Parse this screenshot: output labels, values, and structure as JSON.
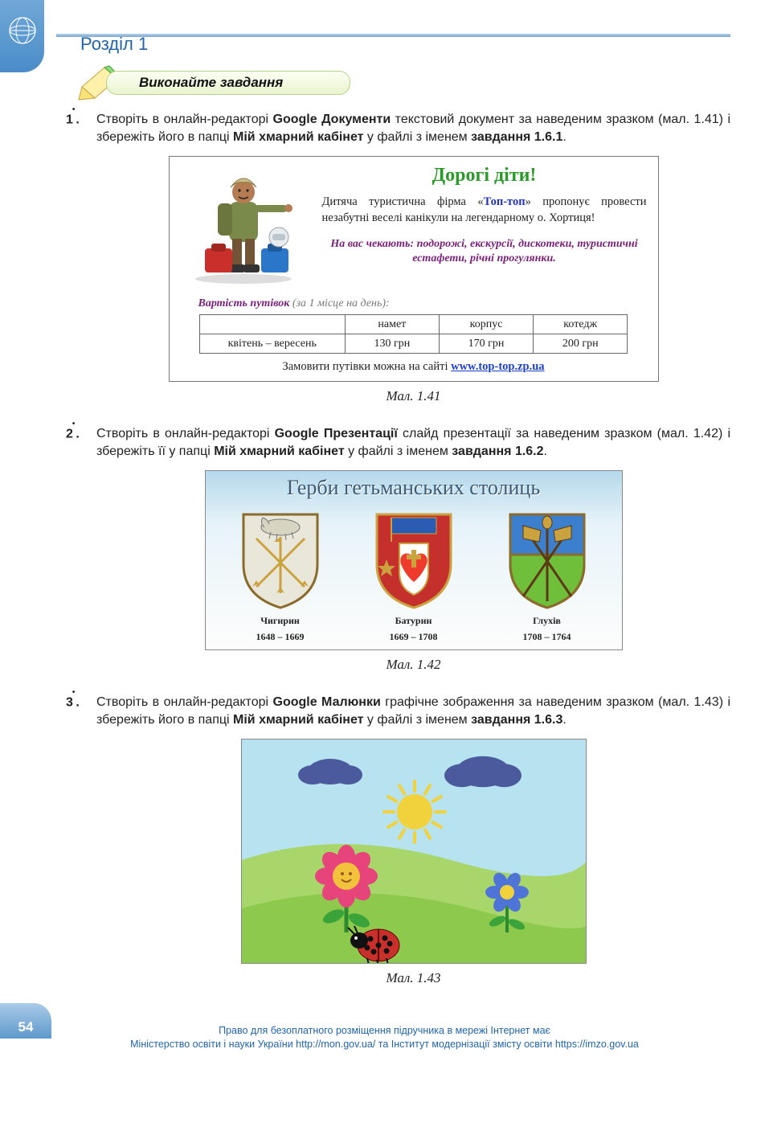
{
  "header": {
    "section": "Розділ 1",
    "banner": "Виконайте завдання"
  },
  "tasks": [
    {
      "num": "1",
      "dot": "•",
      "text_parts": [
        "Створіть в онлайн-редакторі ",
        "Google Документи",
        " текстовий документ за наведеним зразком (мал. 1.41) і збережіть його в папці ",
        "Мій хмарний кабінет",
        " у файлі з іменем ",
        "завдання 1.6.1",
        "."
      ]
    },
    {
      "num": "2",
      "dot": "•",
      "text_parts": [
        "Створіть в онлайн-редакторі ",
        "Google Презентації",
        " слайд презентації за наведеним зразком (мал. 1.42) і збережіть її у папці ",
        "Мій хмарний кабінет",
        " у файлі з іменем ",
        "завдання 1.6.2",
        "."
      ]
    },
    {
      "num": "3",
      "dot": "•",
      "text_parts": [
        "Створіть в онлайн-редакторі ",
        "Google Малюнки",
        " графічне зображення за наведеним зразком (мал. 1.43) і збережіть його в папці ",
        "Мій хмарний кабінет",
        " у файлі з іменем ",
        "завдання 1.6.3",
        "."
      ]
    }
  ],
  "fig141": {
    "caption": "Мал. 1.41",
    "title": "Дорогі  діти!",
    "para_pre": "Дитяча туристична фірма «",
    "para_firm": "Топ-топ",
    "para_post": "» пропонує провести незабутні веселі канікули на легендарному о. Хортиця!",
    "wait": "На вас чекають: подорожі, екскурсії, дискотеки, туристичні естафети, річні прогулянки.",
    "price_title": "Вартість путівок",
    "price_sub": " (за 1 місце  на день):",
    "table_headers": [
      "",
      "намет",
      "корпус",
      "котедж"
    ],
    "table_row_label": "квітень – вересень",
    "table_row_values": [
      "130 грн",
      "170 грн",
      "200 грн"
    ],
    "order_text": "Замовити путівки можна на сайті ",
    "order_link": "www.top-top.zp.ua"
  },
  "fig142": {
    "caption": "Мал. 1.42",
    "title": "Герби гетьманських столиць",
    "coats": [
      {
        "name": "Чигирин",
        "years": "1648 – 1669",
        "shield": "#e9e7da",
        "border": "#8a6b2b",
        "horse_color": "#d8d4c2",
        "arrows_color": "#caa23e"
      },
      {
        "name": "Батурин",
        "years": "1669 – 1708",
        "shield": "#c5302c",
        "border": "#caa23e",
        "flag_color": "#2a5cb3",
        "heart_color": "#ef3b2c",
        "cross_color": "#caa23e",
        "side_color": "#caa23e"
      },
      {
        "name": "Глухів",
        "years": "1708 – 1764",
        "shield_top": "#3b7fce",
        "shield_bot": "#6fbf3a",
        "border": "#8a6b2b",
        "banners_color": "#caa23e",
        "poles_color": "#5a3b16"
      }
    ]
  },
  "fig143": {
    "caption": "Мал. 1.43",
    "sky": "#b7e2ef",
    "grass_back": "#a9d66a",
    "grass_front": "#8cc94d",
    "cloud_color": "#4a5a9c",
    "sun_color": "#f2d23c",
    "flower1": {
      "petals": "#e6447a",
      "center": "#f2c23c",
      "face": "#9a5a1b",
      "stem": "#2e8a2e",
      "leaf": "#3aa33a"
    },
    "flower2": {
      "petals": "#4f74d8",
      "center": "#f2d23c",
      "stem": "#2e8a2e",
      "leaf": "#3aa33a"
    },
    "ladybug": {
      "body": "#c9302c",
      "spots": "#111",
      "head": "#111"
    }
  },
  "page_number": "54",
  "footer_line1": "Право для безоплатного розміщення підручника в мережі Інтернет має",
  "footer_line2": "Міністерство освіти і науки України http://mon.gov.ua/ та Інститут модернізації змісту освіти https://imzo.gov.ua"
}
